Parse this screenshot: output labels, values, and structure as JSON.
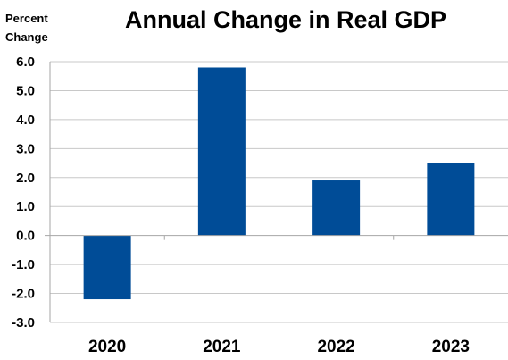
{
  "chart_data": {
    "type": "bar",
    "title": "Annual Change in Real GDP",
    "ylabel_lines": [
      "Percent",
      "Change"
    ],
    "xlabel": "",
    "categories": [
      "2020",
      "2021",
      "2022",
      "2023"
    ],
    "values": [
      -2.2,
      5.8,
      1.9,
      2.5
    ],
    "ylim": [
      -3.0,
      6.0
    ],
    "yticks": [
      "6.0",
      "5.0",
      "4.0",
      "3.0",
      "2.0",
      "1.0",
      "0.0",
      "-1.0",
      "-2.0",
      "-3.0"
    ],
    "grid": true,
    "legend": "none",
    "bar_color": "#004C97",
    "grid_color": "#C8C8C8",
    "axis_color": "#A6A6A6"
  }
}
